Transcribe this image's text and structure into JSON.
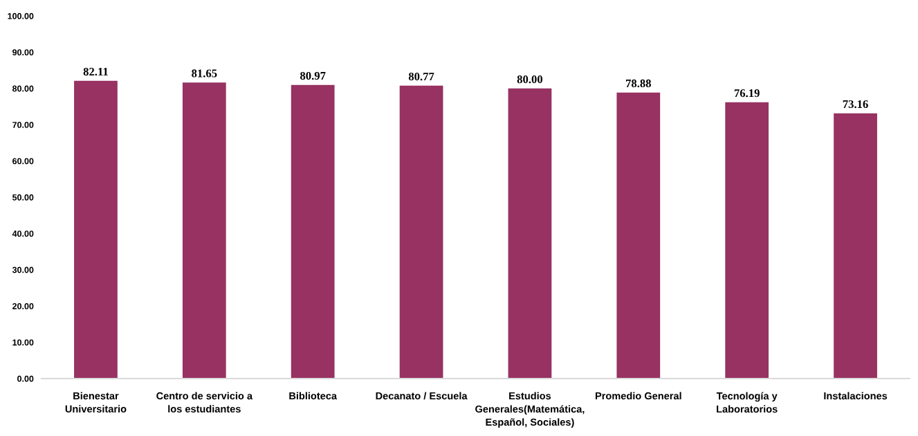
{
  "chart_data": {
    "type": "bar",
    "categories": [
      "Bienestar Universitario",
      "Centro de servicio a los estudiantes",
      "Biblioteca",
      "Decanato / Escuela",
      "Estudios Generales(Matemática, Español, Sociales)",
      "Promedio General",
      "Tecnología y Laboratorios",
      "Instalaciones"
    ],
    "values": [
      82.11,
      81.65,
      80.97,
      80.77,
      80.0,
      78.88,
      76.19,
      73.16
    ],
    "value_labels": [
      "82.11",
      "81.65",
      "80.97",
      "80.77",
      "80.00",
      "78.88",
      "76.19",
      "73.16"
    ],
    "color": "#973262",
    "ylim": [
      0,
      100
    ],
    "yticks": [
      {
        "value": 0,
        "label": "0.00"
      },
      {
        "value": 10,
        "label": "10.00"
      },
      {
        "value": 20,
        "label": "20.00"
      },
      {
        "value": 30,
        "label": "30.00"
      },
      {
        "value": 40,
        "label": "40.00"
      },
      {
        "value": 50,
        "label": "50.00"
      },
      {
        "value": 60,
        "label": "60.00"
      },
      {
        "value": 70,
        "label": "70.00"
      },
      {
        "value": 80,
        "label": "80.00"
      },
      {
        "value": 90,
        "label": "90.00"
      },
      {
        "value": 100,
        "label": "100.00"
      }
    ],
    "grid": false,
    "legend": false
  }
}
